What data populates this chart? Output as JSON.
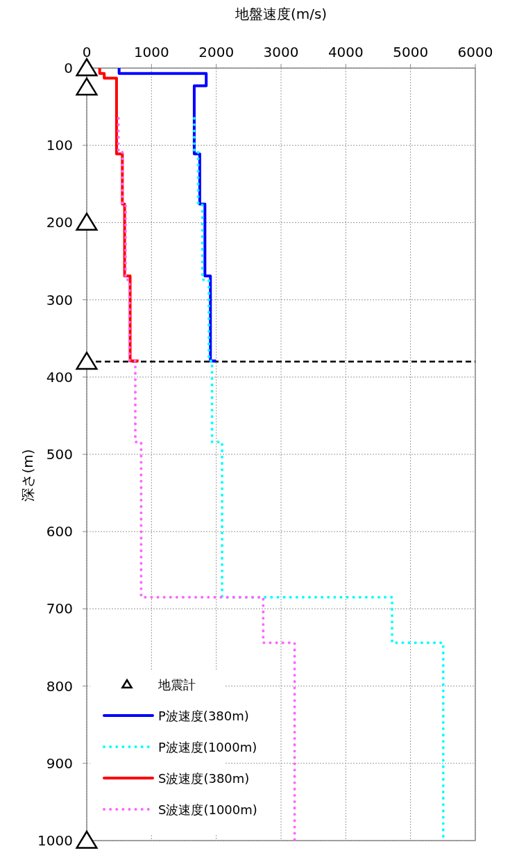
{
  "chart_data": {
    "type": "line",
    "xlabel": "地盤速度(m/s)",
    "ylabel": "深さ(m)",
    "xlim": [
      0,
      6000
    ],
    "xticks": [
      0,
      1000,
      2000,
      3000,
      4000,
      5000,
      6000
    ],
    "ylim": [
      1000,
      0
    ],
    "yticks": [
      0,
      100,
      200,
      300,
      400,
      500,
      600,
      700,
      800,
      900,
      1000
    ],
    "grid": true,
    "legend": "bottom left",
    "ref_lines": [
      {
        "axis": "y",
        "value": 380,
        "color": "#000000",
        "line_style": "dashed"
      }
    ],
    "series": [
      {
        "name": "地震計",
        "type": "scatter",
        "marker": "triangle",
        "color": "#000000",
        "x": [
          0,
          0,
          0,
          0,
          0
        ],
        "values": [
          0,
          25,
          200,
          380,
          1000
        ]
      },
      {
        "name": "P波速度(380m)",
        "line_style": "solid",
        "color": "#0000ff",
        "x": [
          500,
          500,
          1845,
          1845,
          1660,
          1660,
          1745,
          1745,
          1825,
          1825,
          1910,
          1910,
          1995
        ],
        "values": [
          0,
          7,
          7,
          23,
          23,
          111,
          111,
          176,
          176,
          269,
          269,
          379,
          379
        ]
      },
      {
        "name": "P波速度(1000m)",
        "line_style": "dotted",
        "color": "#00ffff",
        "x": [
          1660,
          1660,
          1720,
          1720,
          1785,
          1785,
          1885,
          1885,
          1935,
          1935,
          2090,
          2090,
          4715,
          4715,
          5505,
          5505
        ],
        "values": [
          65,
          109,
          109,
          175,
          175,
          274,
          274,
          379,
          379,
          484,
          484,
          685,
          685,
          744,
          744,
          1000
        ]
      },
      {
        "name": "S波速度(380m)",
        "line_style": "solid",
        "color": "#ff0000",
        "x": [
          200,
          200,
          270,
          270,
          460,
          460,
          550,
          550,
          585,
          585,
          670,
          670,
          800
        ],
        "values": [
          0,
          7,
          7,
          13,
          13,
          111,
          111,
          176,
          176,
          269,
          269,
          379,
          379
        ]
      },
      {
        "name": "S波速度(1000m)",
        "line_style": "dotted",
        "color": "#ff66ff",
        "x": [
          490,
          490,
          550,
          550,
          600,
          600,
          660,
          660,
          750,
          750,
          840,
          840,
          2725,
          2725,
          3210,
          3210
        ],
        "values": [
          65,
          109,
          109,
          175,
          175,
          274,
          274,
          379,
          379,
          484,
          484,
          685,
          685,
          744,
          744,
          1000
        ]
      }
    ]
  }
}
